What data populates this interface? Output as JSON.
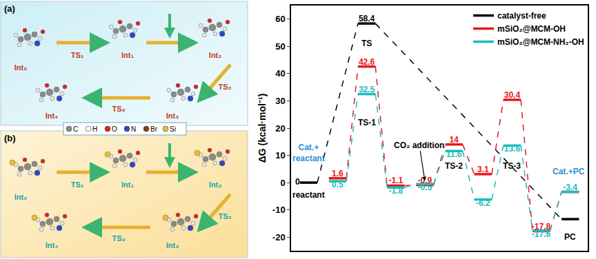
{
  "chart_data": {
    "type": "line",
    "y_label": "ΔG (kcal·mol⁻¹)",
    "x": [
      0,
      1,
      2,
      3,
      4,
      5,
      6,
      7,
      8,
      9
    ],
    "xlim": [
      -0.6,
      9.6
    ],
    "xticks": [],
    "ylim": [
      -25,
      65
    ],
    "yticks": [
      -20,
      -10,
      0,
      10,
      20,
      30,
      40,
      50,
      60
    ],
    "tick_labels": "y",
    "grid": false,
    "legend": "top right",
    "data_labels": true,
    "series": [
      {
        "name": "catalyst-free",
        "color": "#000000",
        "line_style": "dashed",
        "values": [
          0,
          null,
          58.4,
          null,
          null,
          null,
          null,
          null,
          null,
          -13.4
        ],
        "value_labels": [
          "0",
          null,
          "58.4",
          null,
          null,
          null,
          null,
          null,
          null,
          null
        ]
      },
      {
        "name": "mSiO₂@MCM-OH",
        "color": "#e8161b",
        "line_style": "dashed",
        "values": [
          null,
          1.6,
          42.6,
          -1.1,
          -0.9,
          14,
          3.1,
          30.4,
          -17.8,
          -3.4
        ],
        "value_labels": [
          null,
          "1.6",
          "42.6",
          "-1.1",
          "-0.9",
          "14",
          "3.1",
          "30.4",
          "-17.8",
          null
        ]
      },
      {
        "name": "mSiO₂@MCM-NH₂-OH",
        "color": "#1cbcbc",
        "line_style": "dashed",
        "values": [
          null,
          0.5,
          32.5,
          -1.8,
          -0.5,
          11.6,
          -6.2,
          13.6,
          -17.6,
          -3.4
        ],
        "value_labels": [
          null,
          "0.5",
          "32.5",
          "-1.8",
          "-0.5",
          "11.6",
          "-6.2",
          "13.6",
          "-17.6",
          "-3.4"
        ]
      }
    ],
    "annotations": [
      {
        "text": "reactant"
      },
      {
        "text": "Cat.+ reactant"
      },
      {
        "text": "TS"
      },
      {
        "text": "TS-1"
      },
      {
        "text": "CO₂ addition"
      },
      {
        "text": "TS-2"
      },
      {
        "text": "TS-3"
      },
      {
        "text": "PC"
      },
      {
        "text": "Cat.+PC"
      }
    ]
  },
  "panels": [
    {
      "letter": "(a)",
      "labels": [
        "Int₀",
        "TS₁",
        "Int₁",
        "Int₂",
        "TS₂",
        "Int₃",
        "TS₃",
        "Int₄"
      ]
    },
    {
      "letter": "(b)",
      "labels": [
        "Int₀",
        "TS₁",
        "Int₁",
        "Int₂",
        "TS₂",
        "Int₃",
        "TS₃",
        "Int₄"
      ]
    }
  ],
  "element_key": [
    "C",
    "H",
    "O",
    "N",
    "Br",
    "Si"
  ]
}
